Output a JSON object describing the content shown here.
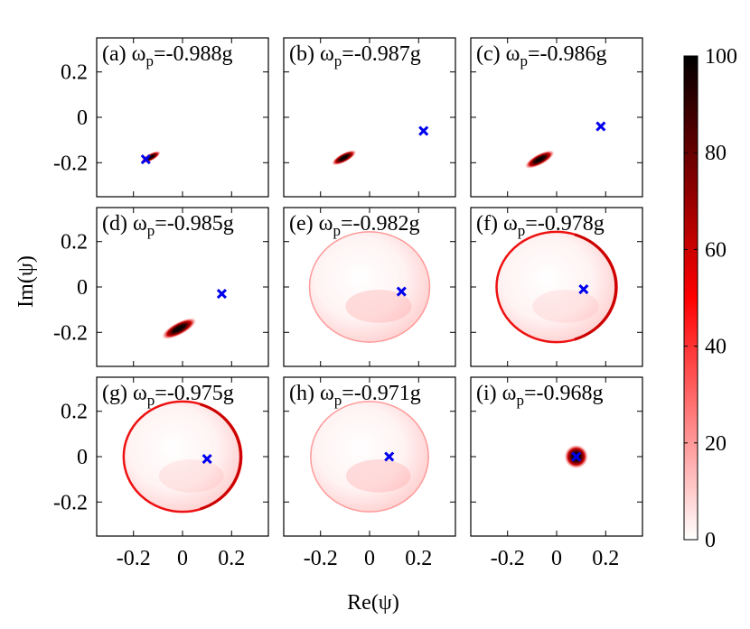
{
  "chart_data": {
    "type": "heatmap",
    "layout": "3x3 grid of panels",
    "xlabel": "Re(ψ)",
    "ylabel": "Im(ψ)",
    "xlim": [
      -0.35,
      0.35
    ],
    "ylim": [
      -0.35,
      0.35
    ],
    "xticks": [
      "-0.2",
      "0",
      "0.2"
    ],
    "yticks": [
      "0.2",
      "0",
      "-0.2"
    ],
    "grid": false,
    "colormap": [
      "#ffffff",
      "#ff0000",
      "#000000"
    ],
    "colorbar": {
      "min": 0,
      "max": 100,
      "ticks": [
        "100",
        "80",
        "60",
        "40",
        "20",
        "0"
      ]
    },
    "panels": [
      {
        "letter": "(a)",
        "omega": "=-0.988g",
        "marker": {
          "x": -0.15,
          "y": -0.185
        },
        "blob": {
          "x": -0.15,
          "y": -0.185,
          "peak": 100
        }
      },
      {
        "letter": "(b)",
        "omega": "=-0.987g",
        "marker": {
          "x": 0.22,
          "y": -0.06
        },
        "blob": {
          "x": -0.13,
          "y": -0.19,
          "peak": 100
        }
      },
      {
        "letter": "(c)",
        "omega": "=-0.986g",
        "marker": {
          "x": 0.18,
          "y": -0.04
        },
        "blob": {
          "x": -0.1,
          "y": -0.2,
          "peak": 100
        }
      },
      {
        "letter": "(d)",
        "omega": "=-0.985g",
        "marker": {
          "x": 0.16,
          "y": -0.03
        },
        "blob": {
          "x": -0.05,
          "y": -0.2,
          "peak": 100
        }
      },
      {
        "letter": "(e)",
        "omega": "=-0.982g",
        "marker": {
          "x": 0.13,
          "y": -0.02
        },
        "ring": {
          "cx": 0.0,
          "cy": 0.0,
          "rx": 0.245,
          "ry": 0.225,
          "peak": 20
        }
      },
      {
        "letter": "(f)",
        "omega": "=-0.978g",
        "marker": {
          "x": 0.11,
          "y": -0.01
        },
        "ring": {
          "cx": 0.0,
          "cy": 0.0,
          "rx": 0.245,
          "ry": 0.225,
          "peak": 60
        }
      },
      {
        "letter": "(g)",
        "omega": "=-0.975g",
        "marker": {
          "x": 0.1,
          "y": -0.01
        },
        "ring": {
          "cx": 0.0,
          "cy": 0.0,
          "rx": 0.24,
          "ry": 0.225,
          "peak": 70
        }
      },
      {
        "letter": "(h)",
        "omega": "=-0.971g",
        "marker": {
          "x": 0.08,
          "y": 0.0
        },
        "ring": {
          "cx": 0.0,
          "cy": 0.0,
          "rx": 0.24,
          "ry": 0.225,
          "peak": 15
        }
      },
      {
        "letter": "(i)",
        "omega": "=-0.968g",
        "marker": {
          "x": 0.08,
          "y": 0.0
        },
        "blob": {
          "x": 0.08,
          "y": 0.0,
          "peak": 100
        }
      }
    ]
  }
}
